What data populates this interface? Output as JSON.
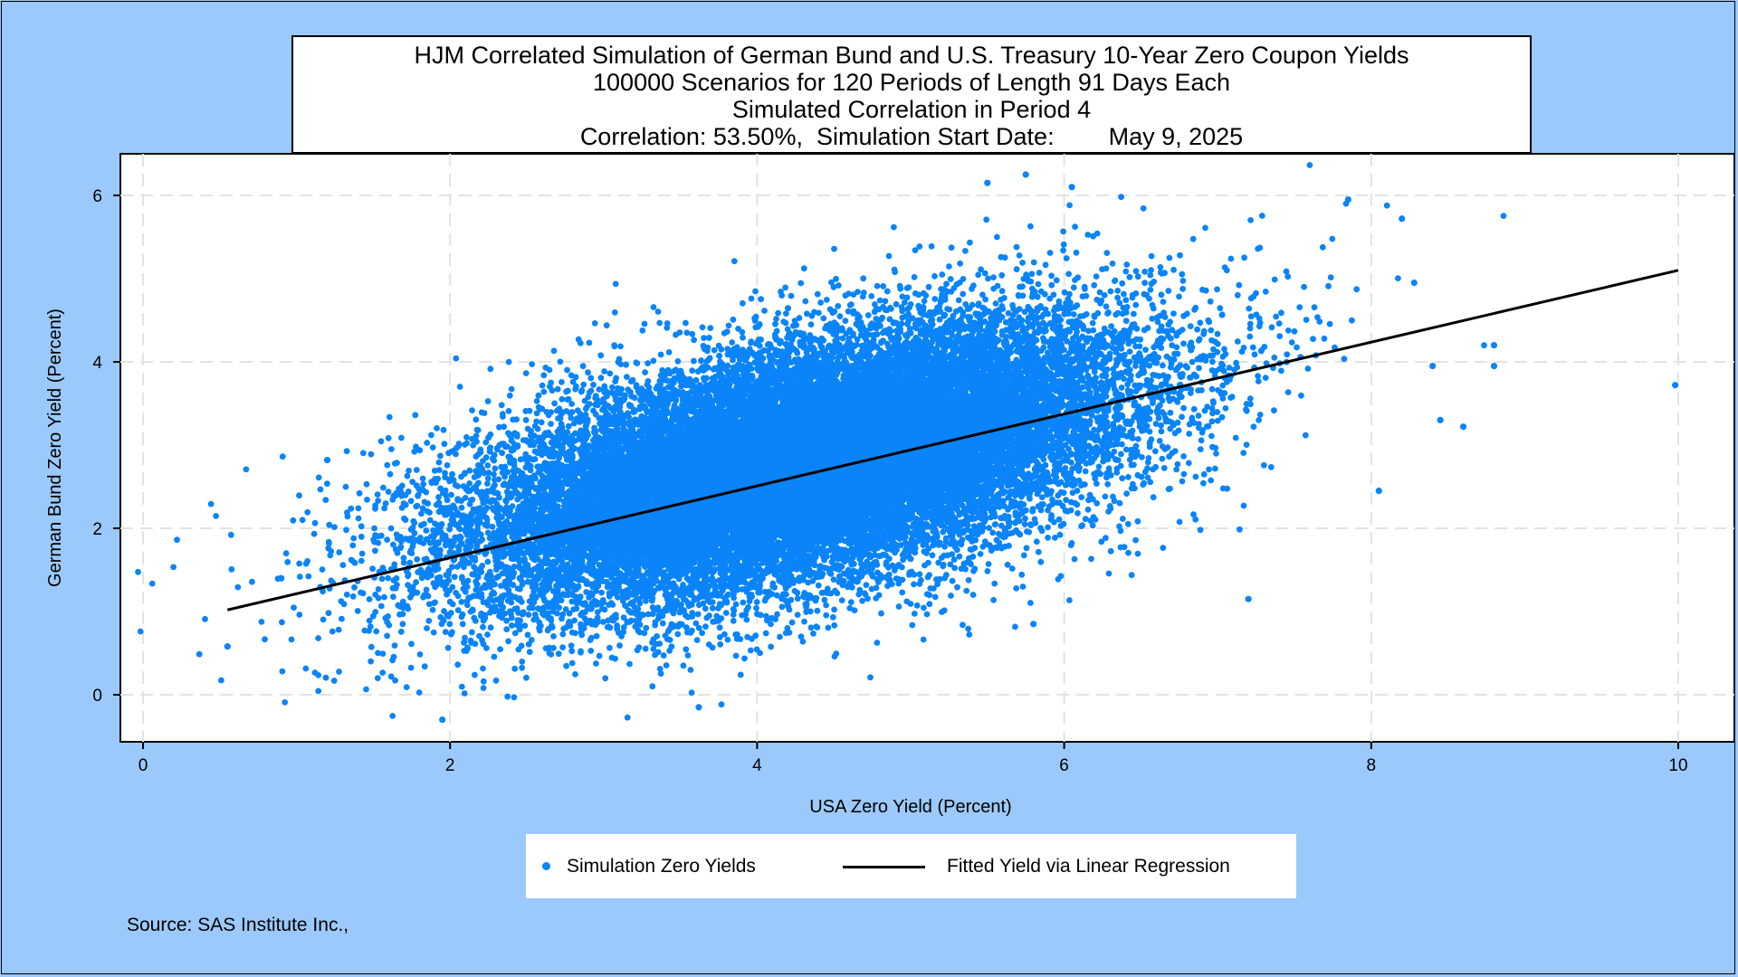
{
  "chart_data": {
    "type": "scatter",
    "title_lines": [
      "HJM Correlated Simulation of German Bund and U.S. Treasury 10-Year Zero Coupon Yields",
      "100000 Scenarios for 120 Periods of Length 91 Days Each",
      "Simulated Correlation in Period 4",
      "Correlation: 53.50%,  Simulation Start Date:        May 9, 2025"
    ],
    "xlabel": "USA Zero Yield (Percent)",
    "ylabel": "German Bund Zero Yield (Percent)",
    "xlim": [
      0,
      10
    ],
    "ylim": [
      -0.3,
      6.3
    ],
    "x_ticks": [
      0,
      2,
      4,
      6,
      8,
      10
    ],
    "y_ticks": [
      0,
      2,
      4,
      6
    ],
    "grid": true,
    "legend_position": "bottom",
    "colors": {
      "scatter": "#0a84f8",
      "fit_line": "#000000",
      "background": "#9bc9fb"
    },
    "series": [
      {
        "name": "Simulation Zero Yields",
        "kind": "scatter",
        "distribution": {
          "n": 100000,
          "mean_x": 4.3,
          "sd_x": 1.05,
          "mean_y": 2.78,
          "sd_y": 0.82,
          "correlation": 0.535
        },
        "outliers": [
          [
            0.55,
            0.58
          ],
          [
            9.98,
            3.72
          ],
          [
            8.8,
            4.2
          ],
          [
            8.8,
            3.95
          ],
          [
            8.6,
            3.22
          ],
          [
            8.45,
            3.3
          ],
          [
            8.4,
            3.95
          ],
          [
            8.2,
            5.72
          ],
          [
            8.28,
            4.95
          ],
          [
            8.05,
            2.45
          ],
          [
            7.85,
            5.95
          ],
          [
            7.2,
            1.15
          ],
          [
            5.75,
            6.25
          ],
          [
            5.5,
            6.15
          ],
          [
            6.05,
            6.1
          ],
          [
            1.95,
            -0.3
          ],
          [
            3.62,
            -0.15
          ],
          [
            5.8,
            0.85
          ],
          [
            1.2,
            2.82
          ],
          [
            0.9,
            1.4
          ]
        ]
      },
      {
        "name": "Fitted Yield via Linear Regression",
        "kind": "line",
        "points": [
          [
            0.55,
            1.02
          ],
          [
            10.0,
            5.1
          ]
        ]
      }
    ],
    "source": "Source: SAS Institute Inc.,"
  }
}
